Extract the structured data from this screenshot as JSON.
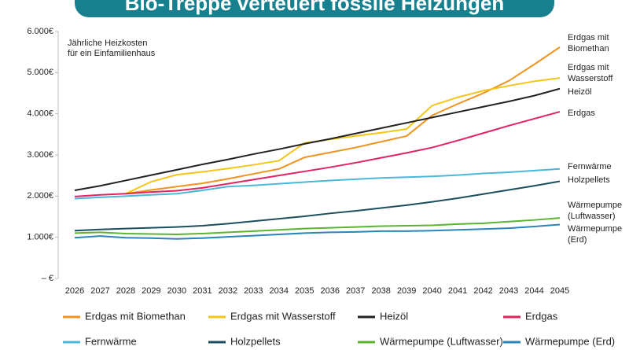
{
  "chart_data": {
    "type": "line",
    "title": "Bio-Treppe verteuert fossile Heizungen",
    "annotation": [
      "Jährliche Heizkosten",
      "für ein Einfamilienhaus"
    ],
    "categories": [
      "2026",
      "2027",
      "2028",
      "2029",
      "2030",
      "2031",
      "2032",
      "2033",
      "2034",
      "2035",
      "2036",
      "2037",
      "2038",
      "2039",
      "2040",
      "2041",
      "2042",
      "2043",
      "2044",
      "2045"
    ],
    "ylim": [
      0,
      6000
    ],
    "yticks": [
      {
        "value": 0,
        "label": "– €"
      },
      {
        "value": 1000,
        "label": "1.000€"
      },
      {
        "value": 2000,
        "label": "2.000€"
      },
      {
        "value": 3000,
        "label": "3.000€"
      },
      {
        "value": 4000,
        "label": "4.000€"
      },
      {
        "value": 5000,
        "label": "5.000€"
      },
      {
        "value": 6000,
        "label": "6.000€"
      }
    ],
    "series": [
      {
        "name": "Erdgas mit Biomethan",
        "color": "#f0931f",
        "end_label": [
          "Erdgas mit",
          "Biomethan"
        ],
        "values": [
          null,
          null,
          2060,
          2150,
          2230,
          2310,
          2420,
          2540,
          2660,
          2940,
          3060,
          3180,
          3320,
          3460,
          3960,
          4240,
          4500,
          4800,
          5200,
          5620
        ]
      },
      {
        "name": "Erdgas mit Wasserstoff",
        "color": "#f5c518",
        "end_label": [
          "Erdgas mit",
          "Wasserstoff"
        ],
        "values": [
          null,
          null,
          2060,
          2350,
          2520,
          2590,
          2670,
          2760,
          2860,
          3290,
          3380,
          3460,
          3540,
          3630,
          4200,
          4400,
          4560,
          4680,
          4790,
          4870
        ]
      },
      {
        "name": "Heizöl",
        "color": "#222222",
        "end_label": [
          "Heizöl"
        ],
        "values": [
          2140,
          2250,
          2380,
          2510,
          2640,
          2770,
          2890,
          3020,
          3140,
          3270,
          3390,
          3520,
          3650,
          3780,
          3910,
          4040,
          4170,
          4300,
          4440,
          4610
        ]
      },
      {
        "name": "Erdgas",
        "color": "#e0245e",
        "end_label": [
          "Erdgas"
        ],
        "values": [
          1990,
          2030,
          2060,
          2100,
          2130,
          2200,
          2300,
          2400,
          2500,
          2600,
          2700,
          2810,
          2930,
          3050,
          3180,
          3350,
          3530,
          3710,
          3880,
          4050
        ]
      },
      {
        "name": "Fernwärme",
        "color": "#4ab8d8",
        "end_label": [
          "Fernwärme"
        ],
        "values": [
          1940,
          1970,
          2000,
          2030,
          2060,
          2140,
          2230,
          2260,
          2300,
          2340,
          2380,
          2410,
          2440,
          2460,
          2480,
          2510,
          2550,
          2580,
          2620,
          2660
        ]
      },
      {
        "name": "Holzpellets",
        "color": "#1d4e5f",
        "end_label": [
          "Holzpellets"
        ],
        "values": [
          1160,
          1190,
          1210,
          1230,
          1250,
          1280,
          1330,
          1390,
          1450,
          1510,
          1580,
          1640,
          1710,
          1780,
          1860,
          1950,
          2050,
          2150,
          2250,
          2360
        ]
      },
      {
        "name": "Wärmepumpe (Luftwasser)",
        "color": "#5cb531",
        "end_label": [
          "Wärmepumpe",
          "(Luftwasser)"
        ],
        "values": [
          1100,
          1120,
          1090,
          1080,
          1070,
          1090,
          1120,
          1150,
          1180,
          1210,
          1230,
          1250,
          1270,
          1280,
          1290,
          1320,
          1340,
          1380,
          1420,
          1470
        ]
      },
      {
        "name": "Wärmepumpe (Erd)",
        "color": "#2a85b8",
        "end_label": [
          "Wärmepumpe",
          "(Erd)"
        ],
        "values": [
          990,
          1030,
          990,
          980,
          960,
          980,
          1010,
          1040,
          1070,
          1100,
          1120,
          1130,
          1150,
          1150,
          1160,
          1180,
          1200,
          1220,
          1260,
          1310
        ]
      }
    ]
  }
}
